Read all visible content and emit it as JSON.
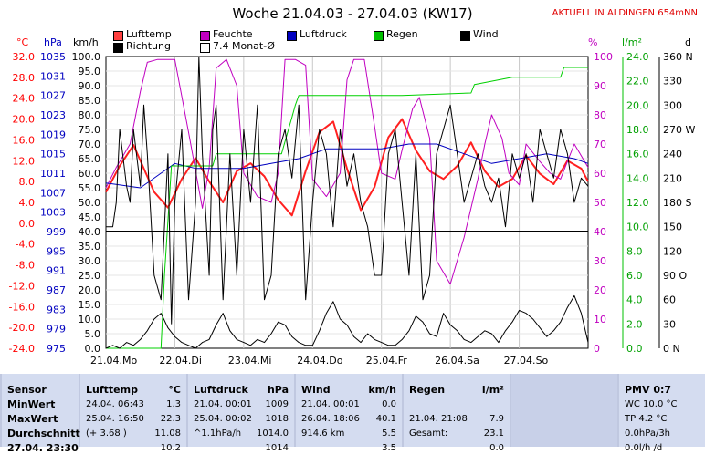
{
  "title": "Woche 21.04.03 - 27.04.03 (KW17)",
  "banner": "AKTUELL IN ALDINGEN 654mNN",
  "legend": [
    {
      "label": "Lufttemp",
      "color": "#ff4040"
    },
    {
      "label": "Richtung",
      "color": "#000000"
    },
    {
      "label": "Feuchte",
      "color": "#c000c0"
    },
    {
      "label": "7.4 Monat-Ø",
      "color": "#ffffff"
    },
    {
      "label": "Luftdruck",
      "color": "#0000c0"
    },
    {
      "label": "Regen",
      "color": "#00c000"
    },
    {
      "label": "Wind",
      "color": "#000000"
    }
  ],
  "axes": {
    "temp": {
      "unit": "°C",
      "color": "#ff0000",
      "ticks": [
        "32.0",
        "28.0",
        "24.0",
        "20.0",
        "16.0",
        "12.0",
        "8.0",
        "4.0",
        "0.0",
        "-4.0",
        "-8.0",
        "-12.0",
        "-16.0",
        "-20.0",
        "-24.0"
      ]
    },
    "press": {
      "unit": "hPa",
      "color": "#0000c0",
      "ticks": [
        "1035",
        "1031",
        "1027",
        "1023",
        "1019",
        "1015",
        "1011",
        "1007",
        "1003",
        "999",
        "995",
        "991",
        "987",
        "983",
        "979",
        "975"
      ]
    },
    "wind": {
      "unit": "km/h",
      "color": "#000000",
      "ticks": [
        "100.0",
        "95.0",
        "90.0",
        "85.0",
        "80.0",
        "75.0",
        "70.0",
        "65.0",
        "60.0",
        "55.0",
        "50.0",
        "45.0",
        "40.0",
        "35.0",
        "30.0",
        "25.0",
        "20.0",
        "15.0",
        "10.0",
        "5.0",
        "0.0"
      ]
    },
    "hum": {
      "unit": "%",
      "color": "#c000c0",
      "ticks": [
        "100",
        "90",
        "80",
        "70",
        "60",
        "50",
        "40",
        "30",
        "20",
        "10",
        "0"
      ]
    },
    "rain": {
      "unit": "l/m²",
      "color": "#00a000",
      "ticks": [
        "24.0",
        "22.0",
        "20.0",
        "18.0",
        "16.0",
        "14.0",
        "12.0",
        "10.0",
        "8.0",
        "6.0",
        "4.0",
        "2.0",
        "0.0"
      ]
    },
    "dir": {
      "unit": "d",
      "color": "#000000",
      "ticks": [
        "360 N",
        "330",
        "300",
        "270 W",
        "240",
        "210",
        "180 S",
        "150",
        "120",
        "90 O",
        "60",
        "30",
        "0 N"
      ]
    }
  },
  "days": [
    "21.04.",
    "Mo",
    "22.04.",
    "Di",
    "23.04.",
    "Mi",
    "24.04.",
    "Do",
    "25.04.",
    "Fr",
    "26.04.",
    "Sa",
    "27.04.",
    "So"
  ],
  "chart_data": {
    "type": "line",
    "title": "Woche 21.04.03 - 27.04.03 (KW17)",
    "x_unit": "days from 21.04.03 00:00",
    "xlim": [
      0,
      7
    ],
    "series": [
      {
        "name": "Lufttemp",
        "axis": "temp",
        "color": "#ff2020",
        "width": 2,
        "x": [
          0,
          0.2,
          0.4,
          0.55,
          0.7,
          0.9,
          1.1,
          1.3,
          1.5,
          1.7,
          1.9,
          2.1,
          2.3,
          2.5,
          2.7,
          2.9,
          3.1,
          3.3,
          3.5,
          3.7,
          3.9,
          4.1,
          4.3,
          4.5,
          4.7,
          4.9,
          5.1,
          5.3,
          5.5,
          5.7,
          5.9,
          6.1,
          6.3,
          6.5,
          6.7,
          6.9,
          7
        ],
        "y": [
          6.0,
          11.0,
          15.0,
          10.5,
          6.0,
          3.0,
          8.5,
          12.5,
          8.0,
          4.0,
          10.0,
          11.5,
          9.0,
          4.5,
          1.5,
          10.0,
          17.5,
          19.5,
          10.5,
          2.5,
          7.0,
          16.5,
          20.0,
          14.0,
          10.0,
          8.5,
          11.0,
          15.5,
          10.0,
          7.0,
          8.5,
          13.0,
          9.5,
          7.5,
          12.0,
          10.5,
          8.0
        ]
      },
      {
        "name": "Feuchte",
        "axis": "hum",
        "color": "#c000c0",
        "width": 1,
        "x": [
          0,
          0.15,
          0.35,
          0.5,
          0.6,
          0.75,
          0.85,
          1.0,
          1.2,
          1.4,
          1.5,
          1.6,
          1.75,
          1.9,
          2.0,
          2.2,
          2.4,
          2.5,
          2.6,
          2.75,
          2.9,
          3.0,
          3.2,
          3.4,
          3.5,
          3.6,
          3.75,
          3.9,
          4.0,
          4.2,
          4.3,
          4.45,
          4.55,
          4.7,
          4.8,
          5.0,
          5.2,
          5.4,
          5.5,
          5.6,
          5.75,
          5.85,
          6.0,
          6.1,
          6.3,
          6.45,
          6.6,
          6.8,
          7
        ],
        "y": [
          55,
          62,
          70,
          88,
          98,
          99,
          99,
          99,
          74,
          48,
          62,
          96,
          99,
          90,
          60,
          52,
          50,
          60,
          99,
          99,
          97,
          58,
          52,
          60,
          92,
          99,
          99,
          76,
          60,
          58,
          68,
          82,
          86,
          72,
          30,
          22,
          38,
          58,
          70,
          80,
          72,
          60,
          56,
          70,
          64,
          60,
          58,
          70,
          62
        ]
      },
      {
        "name": "Luftdruck",
        "axis": "press",
        "color": "#0000c0",
        "width": 1,
        "x": [
          0,
          0.5,
          0.8,
          1.0,
          1.3,
          1.6,
          2.0,
          2.4,
          2.8,
          3.2,
          3.6,
          4.0,
          4.4,
          4.8,
          5.2,
          5.6,
          6.0,
          6.4,
          6.8,
          7
        ],
        "y": [
          1009,
          1008,
          1011,
          1013,
          1012,
          1012,
          1012,
          1013,
          1014,
          1016,
          1016,
          1016,
          1017,
          1017,
          1015,
          1013,
          1014,
          1015,
          1014,
          1013
        ]
      },
      {
        "name": "Regen",
        "axis": "rain",
        "color": "#00d000",
        "width": 1,
        "x": [
          0,
          0.75,
          0.8,
          0.85,
          0.95,
          1.0,
          1.55,
          1.6,
          1.8,
          2.55,
          2.6,
          2.7,
          2.75,
          2.8,
          4.3,
          5.3,
          5.35,
          5.9,
          6.6,
          6.65,
          7
        ],
        "y": [
          0,
          0,
          0,
          6,
          15,
          15,
          15,
          16,
          16,
          16,
          17,
          19,
          20,
          20.8,
          20.8,
          21,
          21.7,
          22.3,
          22.3,
          23.1,
          23.1
        ]
      },
      {
        "name": "Wind",
        "axis": "wind",
        "color": "#000000",
        "width": 1,
        "x": [
          0,
          0.1,
          0.2,
          0.3,
          0.4,
          0.5,
          0.6,
          0.7,
          0.8,
          0.9,
          1.0,
          1.1,
          1.2,
          1.3,
          1.4,
          1.5,
          1.6,
          1.7,
          1.8,
          1.9,
          2.0,
          2.1,
          2.2,
          2.3,
          2.4,
          2.5,
          2.6,
          2.7,
          2.8,
          2.9,
          3.0,
          3.1,
          3.2,
          3.3,
          3.4,
          3.5,
          3.6,
          3.7,
          3.8,
          3.9,
          4.0,
          4.1,
          4.2,
          4.3,
          4.4,
          4.5,
          4.6,
          4.7,
          4.8,
          4.9,
          5.0,
          5.1,
          5.2,
          5.3,
          5.4,
          5.5,
          5.6,
          5.7,
          5.8,
          5.9,
          6.0,
          6.1,
          6.2,
          6.3,
          6.4,
          6.5,
          6.6,
          6.7,
          6.8,
          6.9,
          7
        ],
        "y": [
          0,
          1,
          0,
          2,
          1,
          3,
          6,
          10,
          12,
          7,
          4,
          2,
          1,
          0,
          2,
          3,
          8,
          12,
          6,
          3,
          2,
          1,
          3,
          2,
          5,
          9,
          8,
          4,
          2,
          1,
          1,
          6,
          12,
          16,
          10,
          8,
          4,
          2,
          5,
          3,
          2,
          1,
          1,
          3,
          6,
          11,
          9,
          5,
          4,
          12,
          8,
          6,
          3,
          2,
          4,
          6,
          5,
          2,
          6,
          9,
          13,
          12,
          10,
          7,
          4,
          6,
          9,
          14,
          18,
          12,
          2
        ]
      },
      {
        "name": "Richtung",
        "axis": "dir",
        "color": "#000000",
        "width": 1,
        "x": [
          0,
          0.1,
          0.15,
          0.2,
          0.3,
          0.35,
          0.4,
          0.5,
          0.55,
          0.6,
          0.7,
          0.8,
          0.9,
          0.95,
          1.0,
          1.1,
          1.2,
          1.3,
          1.35,
          1.4,
          1.5,
          1.55,
          1.6,
          1.7,
          1.8,
          1.9,
          2.0,
          2.1,
          2.2,
          2.3,
          2.4,
          2.5,
          2.6,
          2.7,
          2.8,
          2.9,
          3.0,
          3.1,
          3.2,
          3.3,
          3.4,
          3.5,
          3.6,
          3.7,
          3.8,
          3.9,
          4.0,
          4.1,
          4.2,
          4.3,
          4.4,
          4.5,
          4.6,
          4.7,
          4.8,
          4.9,
          5.0,
          5.1,
          5.2,
          5.3,
          5.4,
          5.5,
          5.6,
          5.7,
          5.8,
          5.9,
          6.0,
          6.1,
          6.2,
          6.3,
          6.4,
          6.5,
          6.6,
          6.7,
          6.8,
          6.9,
          7
        ],
        "y": [
          150,
          150,
          180,
          270,
          200,
          180,
          270,
          200,
          300,
          240,
          90,
          60,
          240,
          30,
          180,
          270,
          60,
          180,
          360,
          240,
          90,
          270,
          300,
          60,
          240,
          90,
          270,
          180,
          300,
          60,
          90,
          240,
          270,
          210,
          300,
          60,
          180,
          270,
          240,
          150,
          270,
          200,
          240,
          180,
          150,
          90,
          90,
          240,
          270,
          180,
          90,
          240,
          60,
          90,
          240,
          270,
          300,
          240,
          180,
          210,
          240,
          200,
          180,
          210,
          150,
          240,
          210,
          240,
          180,
          270,
          240,
          210,
          270,
          240,
          180,
          210,
          200
        ]
      },
      {
        "name": "7.4 Monat-Ø",
        "axis": "wind",
        "color": "#000000",
        "width": 2,
        "x": [
          0,
          7
        ],
        "y": [
          40,
          40
        ]
      }
    ]
  },
  "table": {
    "sensor": {
      "head": "Sensor",
      "rows": [
        "MinWert",
        "MaxWert",
        "Durchschnitt",
        "27.04. 23:30"
      ]
    },
    "lufttemp": {
      "head": "Lufttemp",
      "unit": "°C",
      "rows": [
        [
          "24.04.  06:43",
          "1.3"
        ],
        [
          "25.04.  16:50",
          "22.3"
        ],
        [
          "(+ 3.68 )",
          "11.08"
        ],
        [
          "",
          "10.2"
        ]
      ]
    },
    "luftdruck": {
      "head": "Luftdruck",
      "unit": "hPa",
      "rows": [
        [
          "21.04.  00:01",
          "1009"
        ],
        [
          "25.04.  00:02",
          "1018"
        ],
        [
          "^1.1hPa/h",
          "1014.0"
        ],
        [
          "",
          "1014"
        ]
      ]
    },
    "wind": {
      "head": "Wind",
      "unit": "km/h",
      "rows": [
        [
          "21.04.  00:01",
          "0.0"
        ],
        [
          "26.04.  18:06",
          "40.1"
        ],
        [
          "914.6 km",
          "5.5"
        ],
        [
          "",
          "3.5"
        ]
      ]
    },
    "regen": {
      "head": "Regen",
      "unit": "l/m²",
      "rows": [
        [
          "",
          ""
        ],
        [
          "21.04.  21:08",
          "7.9"
        ],
        [
          "Gesamt:",
          "23.1"
        ],
        [
          "",
          "0.0"
        ]
      ]
    },
    "pmv": {
      "head": "PMV 0:7",
      "rows": [
        "WC 10.0 °C",
        "TP 4.2 °C",
        "0.0hPa/3h",
        "0.0l/h /d"
      ]
    }
  }
}
